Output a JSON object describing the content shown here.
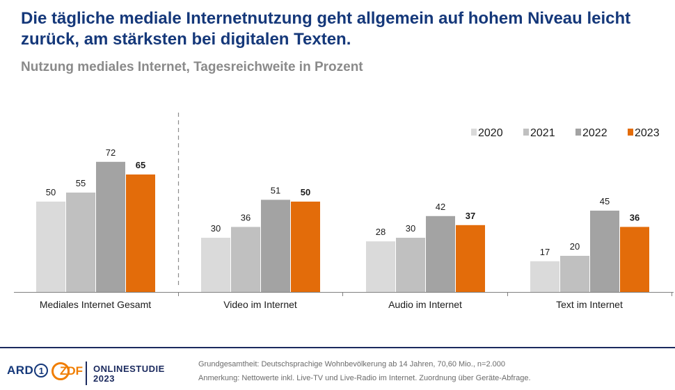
{
  "header": {
    "title": "Die tägliche mediale Internetnutzung geht allgemein auf hohem Niveau leicht zurück, am stärksten bei digitalen Texten.",
    "subtitle": "Nutzung mediales Internet, Tagesreichweite in Prozent"
  },
  "chart_data": {
    "type": "bar",
    "title": "Nutzung mediales Internet, Tagesreichweite in Prozent",
    "xlabel": "",
    "ylabel": "",
    "categories": [
      "Mediales Internet Gesamt",
      "Video im Internet",
      "Audio im Internet",
      "Text im Internet"
    ],
    "series": [
      {
        "name": "2020",
        "values": [
          50,
          30,
          28,
          17
        ],
        "color": "#dadada"
      },
      {
        "name": "2021",
        "values": [
          55,
          36,
          30,
          20
        ],
        "color": "#c0c0c0"
      },
      {
        "name": "2022",
        "values": [
          72,
          51,
          42,
          45
        ],
        "color": "#a3a3a3"
      },
      {
        "name": "2023",
        "values": [
          65,
          50,
          37,
          36
        ],
        "color": "#e36c0a"
      }
    ],
    "ylim": [
      0,
      100
    ],
    "grid": false,
    "legend_position": "top-right",
    "highlight_series": "2023",
    "separator_after_category": "Mediales Internet Gesamt"
  },
  "footer": {
    "logo_ard": "ARD",
    "logo_ard_mark": "1",
    "logo_zdf": "ZDF",
    "study_line1": "ONLINESTUDIE",
    "study_line2": "2023",
    "note_population": "Grundgesamtheit: Deutschsprachige Wohnbevölkerung ab 14 Jahren, 70,60 Mio., n=2.000",
    "note_remark": "Anmerkung: Nettowerte inkl. Live-TV und Live-Radio im Internet. Zuordnung über Geräte-Abfrage."
  }
}
